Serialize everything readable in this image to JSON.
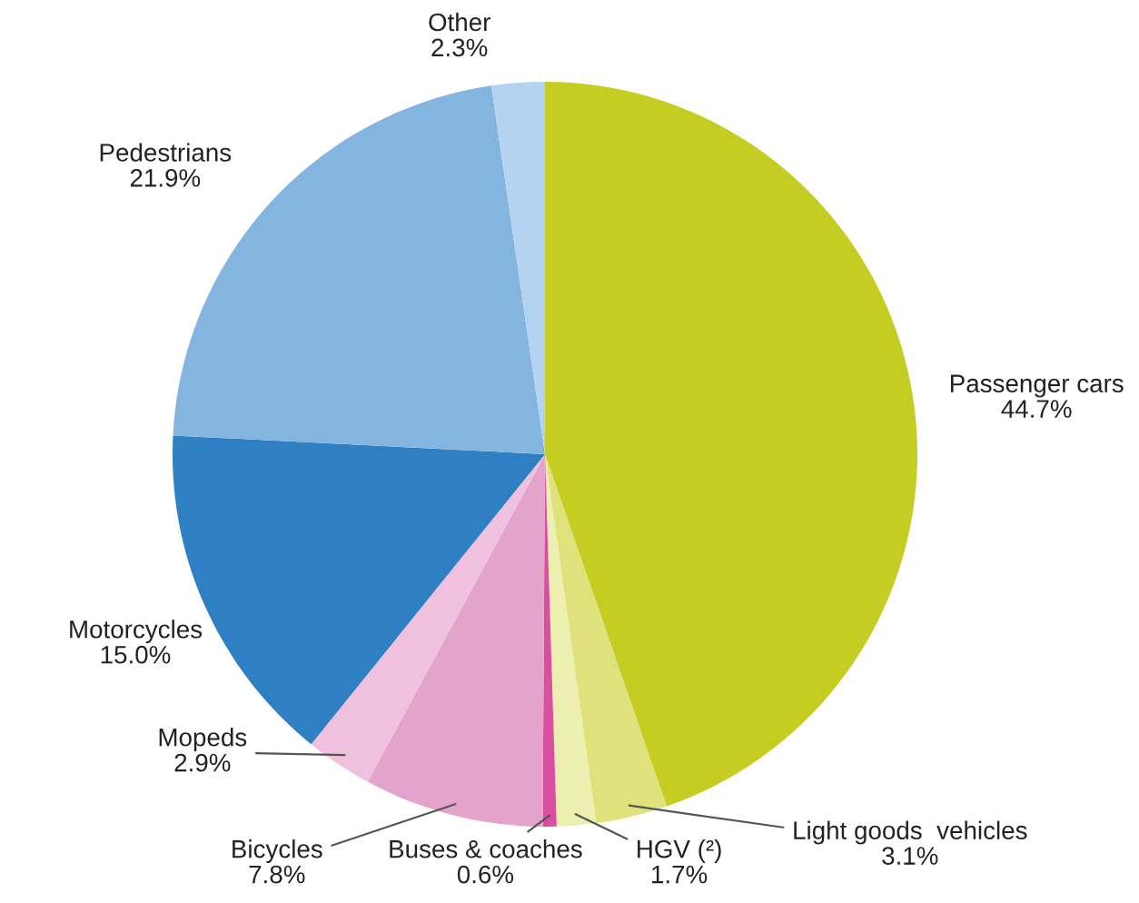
{
  "chart_data": {
    "type": "pie",
    "categories": [
      "Passenger cars",
      "Light goods  vehicles",
      "HGV (²)",
      "Buses & coaches",
      "Bicycles",
      "Mopeds",
      "Motorcycles",
      "Pedestrians",
      "Other"
    ],
    "values": [
      44.7,
      3.1,
      1.7,
      0.6,
      7.8,
      2.9,
      15.0,
      21.9,
      2.3
    ],
    "colors": [
      "#c5cc22",
      "#dfe27a",
      "#ecefb0",
      "#d84fa0",
      "#e3a3cb",
      "#efc1de",
      "#2e80c2",
      "#83b5e0",
      "#b4d3f0"
    ],
    "value_labels": [
      "44.7%",
      "3.1%",
      "1.7%",
      "0.6%",
      "7.8%",
      "2.9%",
      "15.0%",
      "21.9%",
      "2.3%"
    ],
    "legend": false
  }
}
